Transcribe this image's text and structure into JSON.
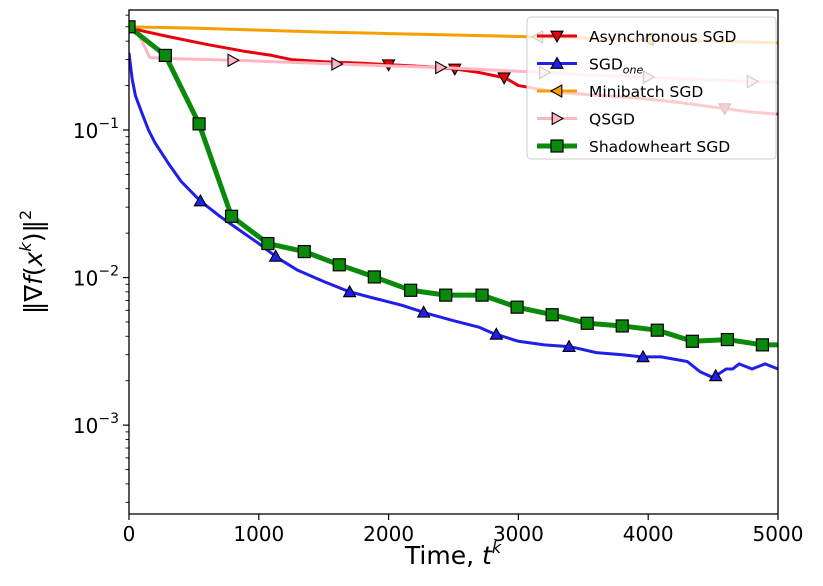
{
  "chart_data": {
    "type": "line",
    "title": "",
    "xlabel": "Time, ",
    "xlabel_sup": "k",
    "xlabel_var": "t",
    "ylabel": "‖∇f(x^k)‖^2",
    "xlim": [
      0,
      5000
    ],
    "ylim": [
      0.00025,
      0.65
    ],
    "yscale": "log",
    "grid": false,
    "legend_loc": "top-right",
    "x_ticks": [
      {
        "value": 0,
        "label": "0"
      },
      {
        "value": 1000,
        "label": "1000"
      },
      {
        "value": 2000,
        "label": "2000"
      },
      {
        "value": 3000,
        "label": "3000"
      },
      {
        "value": 4000,
        "label": "4000"
      },
      {
        "value": 5000,
        "label": "5000"
      }
    ],
    "y_ticks": [
      {
        "value": 0.1,
        "base": "10",
        "exp": "−1"
      },
      {
        "value": 0.01,
        "base": "10",
        "exp": "−2"
      },
      {
        "value": 0.001,
        "base": "10",
        "exp": "−3"
      }
    ],
    "series": [
      {
        "name": "Asynchronous SGD",
        "color": "#e8000b",
        "marker": "triangle-down",
        "x": [
          0,
          100,
          300,
          600,
          900,
          1100,
          1250,
          1500,
          1800,
          2000,
          2300,
          2500,
          2700,
          2900,
          3000,
          3300,
          3600,
          3900,
          4200,
          4500,
          4800,
          5000
        ],
        "y": [
          0.5,
          0.47,
          0.43,
          0.38,
          0.34,
          0.32,
          0.3,
          0.29,
          0.283,
          0.277,
          0.268,
          0.26,
          0.245,
          0.225,
          0.2,
          0.18,
          0.172,
          0.165,
          0.155,
          0.143,
          0.132,
          0.128
        ],
        "marker_x": [
          2000,
          2510,
          2890,
          4590
        ]
      },
      {
        "name": "SGD",
        "name_sub": "one",
        "color": "#1f1fe8",
        "marker": "triangle-up",
        "x": [
          0,
          25,
          50,
          100,
          150,
          200,
          300,
          400,
          550,
          700,
          850,
          1000,
          1150,
          1300,
          1500,
          1700,
          1900,
          2100,
          2300,
          2500,
          2700,
          2800,
          3000,
          3200,
          3400,
          3600,
          3800,
          3950,
          4100,
          4300,
          4400,
          4500,
          4600,
          4650,
          4700,
          4800,
          4900,
          5000
        ],
        "y": [
          0.33,
          0.22,
          0.17,
          0.13,
          0.1,
          0.082,
          0.06,
          0.045,
          0.033,
          0.026,
          0.021,
          0.017,
          0.0135,
          0.0112,
          0.0094,
          0.008,
          0.0072,
          0.0065,
          0.0057,
          0.0051,
          0.0046,
          0.0042,
          0.0037,
          0.0035,
          0.0034,
          0.0031,
          0.003,
          0.0029,
          0.0029,
          0.0027,
          0.0023,
          0.0021,
          0.0024,
          0.0024,
          0.0026,
          0.0024,
          0.0026,
          0.0024
        ],
        "marker_x": [
          550,
          1130,
          1700,
          2270,
          2830,
          3390,
          3960,
          4520
        ]
      },
      {
        "name": "Minibatch SGD",
        "color": "#f5a000",
        "marker": "triangle-left",
        "x": [
          0,
          500,
          1000,
          1500,
          2000,
          2500,
          3000,
          3500,
          4000,
          4500,
          5000
        ],
        "y": [
          0.5,
          0.49,
          0.475,
          0.46,
          0.45,
          0.44,
          0.43,
          0.42,
          0.41,
          0.4,
          0.39
        ],
        "marker_x": [
          3150,
          4000
        ]
      },
      {
        "name": "QSGD",
        "color": "#ffb6c1",
        "marker": "triangle-right",
        "x": [
          0,
          50,
          100,
          160,
          300,
          600,
          900,
          1200,
          1600,
          2000,
          2400,
          2800,
          3200,
          3600,
          4000,
          4400,
          4800,
          5000
        ],
        "y": [
          0.5,
          0.47,
          0.4,
          0.31,
          0.305,
          0.3,
          0.295,
          0.288,
          0.28,
          0.272,
          0.265,
          0.255,
          0.245,
          0.235,
          0.228,
          0.22,
          0.213,
          0.21
        ],
        "marker_x": [
          800,
          1600,
          2400,
          3200,
          4000,
          4800
        ]
      },
      {
        "name": "Shadowheart SGD",
        "color": "#0a8a0a",
        "marker": "square",
        "linewidth": 5,
        "x": [
          0,
          280,
          540,
          790,
          1070,
          1350,
          1620,
          1890,
          2170,
          2440,
          2720,
          2990,
          3260,
          3530,
          3800,
          4070,
          4340,
          4610,
          4880,
          5000
        ],
        "y": [
          0.5,
          0.32,
          0.11,
          0.026,
          0.017,
          0.015,
          0.0122,
          0.0101,
          0.0082,
          0.0076,
          0.0076,
          0.0063,
          0.0056,
          0.0049,
          0.0047,
          0.0044,
          0.0037,
          0.0038,
          0.0035,
          0.0035
        ],
        "marker_x": [
          0,
          280,
          540,
          790,
          1070,
          1350,
          1620,
          1890,
          2170,
          2440,
          2720,
          2990,
          3260,
          3530,
          3800,
          4070,
          4340,
          4610,
          4880
        ]
      }
    ]
  }
}
